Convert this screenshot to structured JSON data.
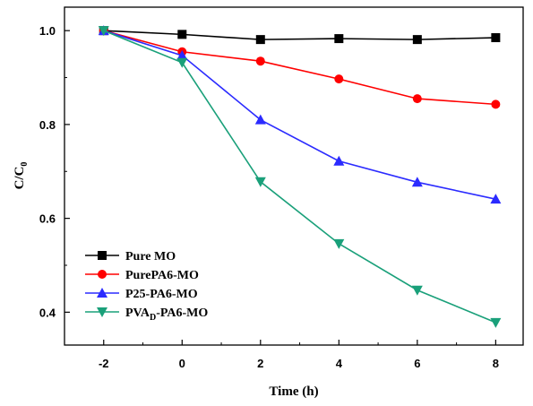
{
  "chart_data": {
    "type": "line",
    "xlabel": "Time (h)",
    "ylabel_main": "C/C",
    "ylabel_sub": "0",
    "xlim": [
      -3,
      8.7
    ],
    "ylim": [
      0.33,
      1.05
    ],
    "x_ticks": [
      -2,
      0,
      2,
      4,
      6,
      8
    ],
    "y_ticks": [
      0.4,
      0.6,
      0.8,
      1.0
    ],
    "x_tick_labels": [
      "-2",
      "0",
      "2",
      "4",
      "6",
      "8"
    ],
    "y_tick_labels": [
      "0.4",
      "0.6",
      "0.8",
      "1.0"
    ],
    "legend_position": "bottom-left",
    "x": [
      -2,
      0,
      2,
      4,
      6,
      8
    ],
    "series": [
      {
        "name": "Pure MO",
        "color": "#000000",
        "marker": "square",
        "values": [
          1.0,
          0.992,
          0.981,
          0.983,
          0.981,
          0.985
        ]
      },
      {
        "name": "PurePA6-MO",
        "color": "#ff0000",
        "marker": "circle",
        "values": [
          1.0,
          0.955,
          0.935,
          0.897,
          0.855,
          0.843
        ]
      },
      {
        "name": "P25-PA6-MO",
        "color": "#2b2bff",
        "marker": "triangle-up",
        "values": [
          1.0,
          0.947,
          0.81,
          0.722,
          0.677,
          0.641
        ]
      },
      {
        "name": "PVA",
        "name_sub": "D",
        "name_suffix": "-PA6-MO",
        "color": "#1aa07a",
        "marker": "triangle-down",
        "values": [
          1.0,
          0.932,
          0.678,
          0.546,
          0.447,
          0.378
        ]
      }
    ]
  }
}
